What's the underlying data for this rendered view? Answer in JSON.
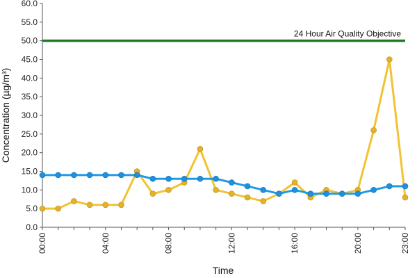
{
  "chart_data": {
    "type": "line",
    "title": "",
    "xlabel": "Time",
    "ylabel": "Concentration (µg/m³)",
    "ylim": [
      0,
      60
    ],
    "y_ticks": [
      "0.0",
      "5.0",
      "10.0",
      "15.0",
      "20.0",
      "25.0",
      "30.0",
      "35.0",
      "40.0",
      "45.0",
      "50.0",
      "55.0",
      "60.0"
    ],
    "x_hours": [
      0,
      1,
      2,
      3,
      4,
      5,
      6,
      7,
      8,
      9,
      10,
      11,
      12,
      13,
      14,
      15,
      16,
      17,
      18,
      19,
      20,
      21,
      22,
      23
    ],
    "x_tick_labels": [
      {
        "hour": 0,
        "label": "00:00"
      },
      {
        "hour": 4,
        "label": "04:00"
      },
      {
        "hour": 8,
        "label": "08:00"
      },
      {
        "hour": 12,
        "label": "12:00"
      },
      {
        "hour": 16,
        "label": "16:00"
      },
      {
        "hour": 20,
        "label": "20:00"
      },
      {
        "hour": 23,
        "label": "23:00"
      }
    ],
    "grid": false,
    "legend": "none",
    "series": [
      {
        "color": "#f2c232",
        "marker_color": "#e3b22a",
        "values": [
          5,
          5,
          7,
          6,
          6,
          6,
          15,
          9,
          10,
          12,
          21,
          10,
          9,
          8,
          7,
          9,
          12,
          8,
          10,
          9,
          10,
          26,
          45,
          8
        ]
      },
      {
        "color": "#1e9be6",
        "marker_color": "#1e90e0",
        "values": [
          14,
          14,
          14,
          14,
          14,
          14,
          14,
          13,
          13,
          13,
          13,
          13,
          12,
          11,
          10,
          9,
          10,
          9,
          9,
          9,
          9,
          10,
          11,
          11
        ]
      }
    ],
    "reference_line": {
      "value": 50,
      "label": "24 Hour Air Quality Objective",
      "color": "#1f7a1f"
    }
  }
}
